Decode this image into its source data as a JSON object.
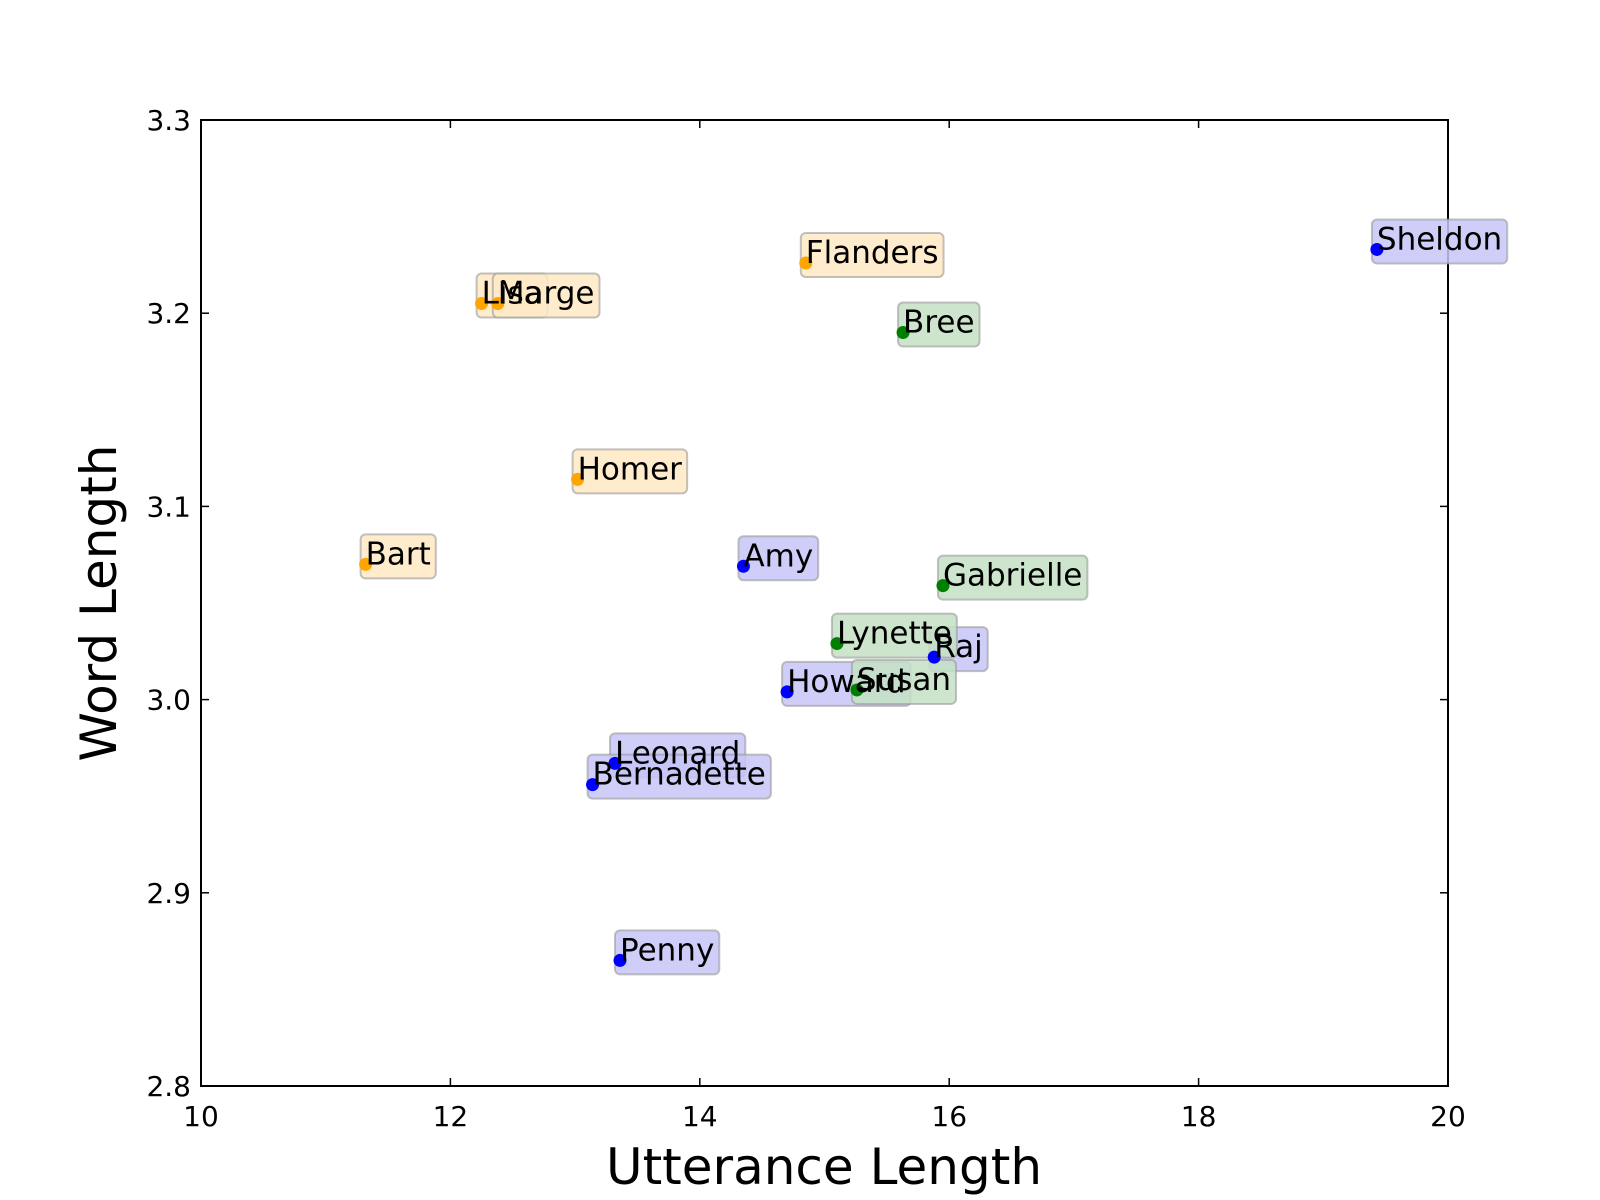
{
  "chart_data": {
    "type": "scatter",
    "title": "",
    "xlabel": "Utterance Length",
    "ylabel": "Word Length",
    "xlim": [
      10,
      20
    ],
    "ylim": [
      2.8,
      3.3
    ],
    "xticks": [
      "10",
      "12",
      "14",
      "16",
      "18",
      "20"
    ],
    "yticks": [
      "2.8",
      "2.9",
      "3.0",
      "3.1",
      "3.2",
      "3.3"
    ],
    "grid": false,
    "legend": "none",
    "colors": {
      "orange": {
        "point": "#FFA500",
        "box": "#FFE9C4"
      },
      "blue": {
        "point": "#0000FF",
        "box": "#C6C6F7"
      },
      "green": {
        "point": "#008000",
        "box": "#C4E1C4"
      }
    },
    "points": [
      {
        "label": "Bart",
        "x": 11.32,
        "y": 3.07,
        "group": "orange"
      },
      {
        "label": "Lisa",
        "x": 12.25,
        "y": 3.205,
        "group": "orange"
      },
      {
        "label": "Marge",
        "x": 12.38,
        "y": 3.205,
        "group": "orange"
      },
      {
        "label": "Homer",
        "x": 13.02,
        "y": 3.114,
        "group": "orange"
      },
      {
        "label": "Flanders",
        "x": 14.85,
        "y": 3.226,
        "group": "orange"
      },
      {
        "label": "Sheldon",
        "x": 19.43,
        "y": 3.233,
        "group": "blue"
      },
      {
        "label": "Amy",
        "x": 14.35,
        "y": 3.069,
        "group": "blue"
      },
      {
        "label": "Raj",
        "x": 15.88,
        "y": 3.022,
        "group": "blue"
      },
      {
        "label": "Howard",
        "x": 14.7,
        "y": 3.004,
        "group": "blue"
      },
      {
        "label": "Leonard",
        "x": 13.32,
        "y": 2.967,
        "group": "blue"
      },
      {
        "label": "Bernadette",
        "x": 13.14,
        "y": 2.956,
        "group": "blue"
      },
      {
        "label": "Penny",
        "x": 13.36,
        "y": 2.865,
        "group": "blue"
      },
      {
        "label": "Bree",
        "x": 15.63,
        "y": 3.19,
        "group": "green"
      },
      {
        "label": "Gabrielle",
        "x": 15.95,
        "y": 3.059,
        "group": "green"
      },
      {
        "label": "Lynette",
        "x": 15.1,
        "y": 3.029,
        "group": "green"
      },
      {
        "label": "Susan",
        "x": 15.26,
        "y": 3.005,
        "group": "green"
      }
    ]
  }
}
